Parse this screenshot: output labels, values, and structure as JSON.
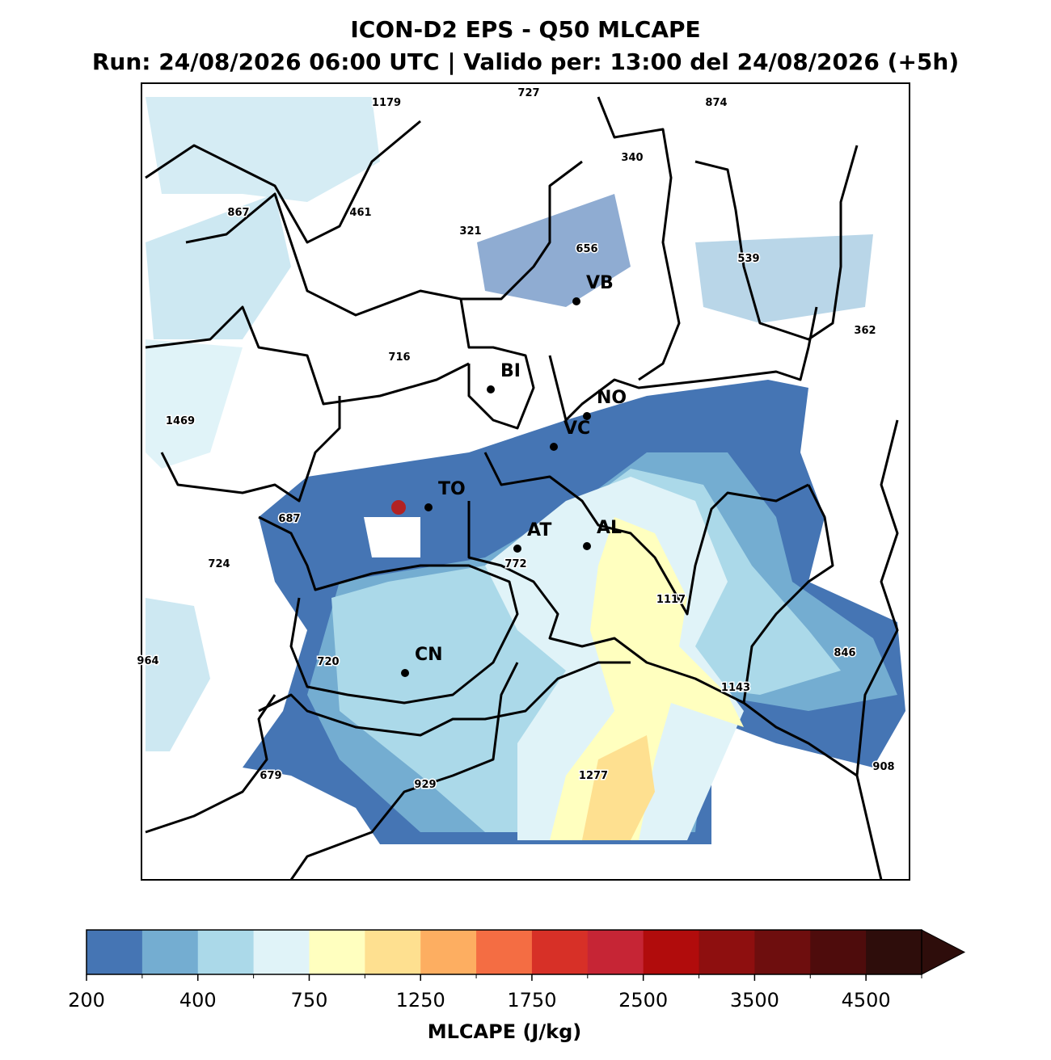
{
  "header": {
    "title": "ICON-D2 EPS - Q50 MLCAPE",
    "subtitle": "Run: 24/08/2026 06:00 UTC | Valido per: 13:00 del 24/08/2026 (+5h)"
  },
  "map": {
    "cities": [
      "VB",
      "BI",
      "NO",
      "VC",
      "TO",
      "AT",
      "AL",
      "CN"
    ],
    "values": [
      1179,
      727,
      874,
      340,
      867,
      461,
      321,
      656,
      539,
      362,
      716,
      1469,
      687,
      724,
      772,
      1117,
      964,
      720,
      846,
      1143,
      679,
      929,
      1277,
      908
    ]
  },
  "colorbar": {
    "label": "MLCAPE (J/kg)",
    "colors": [
      "#4575b4",
      "#74add1",
      "#abd9e9",
      "#e0f3f8",
      "#ffffbf",
      "#fee090",
      "#fdae61",
      "#f46d43",
      "#d73027",
      "#c62535",
      "#b10c0c",
      "#8e0f0f",
      "#6e0e0e",
      "#4e0c0c",
      "#2e0d0b"
    ],
    "ticks": [
      200,
      400,
      750,
      1250,
      1750,
      2500,
      3500,
      4500
    ]
  }
}
